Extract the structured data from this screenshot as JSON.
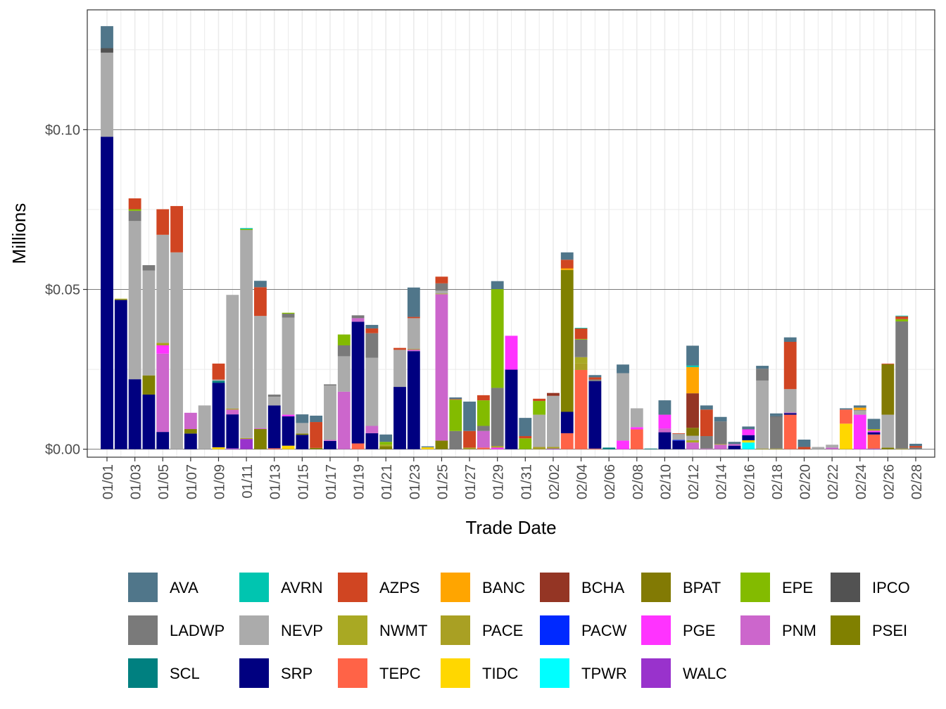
{
  "chart_data": {
    "type": "bar",
    "stacked": true,
    "xlabel": "Trade Date",
    "ylabel": "Millions",
    "ylim": [
      -0.0025,
      0.1375
    ],
    "yticks": [
      {
        "value": 0,
        "label": "$0.00"
      },
      {
        "value": 0.05,
        "label": "$0.05"
      },
      {
        "value": 0.1,
        "label": "$0.10"
      }
    ],
    "grid": true,
    "legend_position": "bottom",
    "series": [
      {
        "name": "AVA",
        "color": "#50768A"
      },
      {
        "name": "AVRN",
        "color": "#00C5B0"
      },
      {
        "name": "AZPS",
        "color": "#D04522"
      },
      {
        "name": "BANC",
        "color": "#FFA500"
      },
      {
        "name": "BCHA",
        "color": "#943524"
      },
      {
        "name": "BPAT",
        "color": "#827A04"
      },
      {
        "name": "EPE",
        "color": "#83BB00"
      },
      {
        "name": "IPCO",
        "color": "#525252"
      },
      {
        "name": "LADWP",
        "color": "#7A7A7A"
      },
      {
        "name": "NEVP",
        "color": "#ABABAB"
      },
      {
        "name": "NWMT",
        "color": "#A9A923"
      },
      {
        "name": "PACE",
        "color": "#A9A023"
      },
      {
        "name": "PACW",
        "color": "#0029FF"
      },
      {
        "name": "PGE",
        "color": "#FF33FF"
      },
      {
        "name": "PNM",
        "color": "#CC66CC"
      },
      {
        "name": "PSEI",
        "color": "#808000"
      },
      {
        "name": "SCL",
        "color": "#008080"
      },
      {
        "name": "SRP",
        "color": "#000080"
      },
      {
        "name": "TEPC",
        "color": "#FF6347"
      },
      {
        "name": "TIDC",
        "color": "#FFD700"
      },
      {
        "name": "TPWR",
        "color": "#00FFFF"
      },
      {
        "name": "WALC",
        "color": "#9932CC"
      }
    ],
    "days": [
      {
        "date": "01/01",
        "label": "01/01",
        "values": {
          "SRP": 0.0978,
          "NEVP": 0.0263,
          "IPCO": 0.0014,
          "AVA": 0.0069
        }
      },
      {
        "date": "01/02",
        "label": "",
        "values": {
          "SRP": 0.0467,
          "NWMT": 0.0004
        }
      },
      {
        "date": "01/03",
        "label": "01/03",
        "values": {
          "SRP": 0.0219,
          "NEVP": 0.0495,
          "LADWP": 0.0032,
          "EPE": 0.0005,
          "AZPS": 0.0034
        }
      },
      {
        "date": "01/04",
        "label": "",
        "values": {
          "SRP": 0.0171,
          "PSEI": 0.006,
          "NEVP": 0.0328,
          "LADWP": 0.0017
        }
      },
      {
        "date": "01/05",
        "label": "01/05",
        "values": {
          "SRP": 0.0054,
          "PNM": 0.0245,
          "PGE": 0.0026,
          "PACE": 0.0008,
          "NEVP": 0.0338,
          "AZPS": 0.008
        }
      },
      {
        "date": "01/06",
        "label": "",
        "values": {
          "NEVP": 0.0616,
          "AZPS": 0.0145
        }
      },
      {
        "date": "01/07",
        "label": "01/07",
        "values": {
          "SRP": 0.0049,
          "PSEI": 0.0014,
          "PNM": 0.0051
        }
      },
      {
        "date": "01/08",
        "label": "",
        "values": {
          "NEVP": 0.0137
        }
      },
      {
        "date": "01/09",
        "label": "01/09",
        "values": {
          "TIDC": 0.0006,
          "SRP": 0.0202,
          "SCL": 0.0006,
          "NEVP": 0.0004,
          "AZPS": 0.005
        }
      },
      {
        "date": "01/10",
        "label": "",
        "values": {
          "WALC": 0.0003,
          "SRP": 0.0106,
          "PNM": 0.0015,
          "PACE": 0.0003,
          "NEVP": 0.0356
        }
      },
      {
        "date": "01/11",
        "label": "01/11",
        "values": {
          "WALC": 0.0032,
          "PACE": 0.0003,
          "NEVP": 0.0651,
          "EPE": 0.0003,
          "AVRN": 0.0003
        }
      },
      {
        "date": "01/12",
        "label": "",
        "values": {
          "PSEI": 0.0063,
          "PNM": 0.0003,
          "NEVP": 0.0351,
          "AZPS": 0.009,
          "AVA": 0.002
        }
      },
      {
        "date": "01/13",
        "label": "01/13",
        "values": {
          "TEPC": 0.0003,
          "SRP": 0.0134,
          "NEVP": 0.0027,
          "LADWP": 0.0007
        }
      },
      {
        "date": "01/14",
        "label": "",
        "values": {
          "TIDC": 0.0011,
          "SRP": 0.0092,
          "PGE": 0.0005,
          "NEVP": 0.0304,
          "LADWP": 0.0012,
          "EPE": 0.0003
        }
      },
      {
        "date": "01/15",
        "label": "01/15",
        "values": {
          "SRP": 0.0045,
          "PSEI": 0.0004,
          "NEVP": 0.0033,
          "AVA": 0.0027
        }
      },
      {
        "date": "01/16",
        "label": "",
        "values": {
          "PSEI": 0.0004,
          "AZPS": 0.0081,
          "AVA": 0.002
        }
      },
      {
        "date": "01/17",
        "label": "01/17",
        "values": {
          "SRP": 0.0026,
          "PNM": 0.0003,
          "NEVP": 0.017,
          "LADWP": 0.0004
        }
      },
      {
        "date": "01/18",
        "label": "",
        "values": {
          "PNM": 0.018,
          "NEVP": 0.0111,
          "LADWP": 0.0034,
          "EPE": 0.0034
        }
      },
      {
        "date": "01/19",
        "label": "01/19",
        "values": {
          "TEPC": 0.0018,
          "SRP": 0.0381,
          "PNM": 0.0011,
          "LADWP": 0.0009
        }
      },
      {
        "date": "01/20",
        "label": "",
        "values": {
          "SRP": 0.005,
          "PNM": 0.0023,
          "NEVP": 0.0213,
          "LADWP": 0.0077,
          "AZPS": 0.0015,
          "AVA": 0.0011
        }
      },
      {
        "date": "01/21",
        "label": "01/21",
        "values": {
          "PSEI": 0.0009,
          "NWMT": 0.0005,
          "EPE": 0.0009,
          "AVA": 0.0023
        }
      },
      {
        "date": "01/22",
        "label": "",
        "values": {
          "SRP": 0.0195,
          "NEVP": 0.0116,
          "AZPS": 0.0006
        }
      },
      {
        "date": "01/23",
        "label": "01/23",
        "values": {
          "SRP": 0.0307,
          "PNM": 0.0005,
          "PACE": 0.0002,
          "NEVP": 0.0096,
          "AZPS": 0.0004,
          "AVA": 0.0092
        }
      },
      {
        "date": "01/24",
        "label": "",
        "values": {
          "TIDC": 0.0006,
          "AVA": 0.0003
        }
      },
      {
        "date": "01/25",
        "label": "01/25",
        "values": {
          "PSEI": 0.0027,
          "PNM": 0.0458,
          "PACE": 0.0002,
          "NEVP": 0.0009,
          "LADWP": 0.0023,
          "AZPS": 0.0021
        }
      },
      {
        "date": "01/26",
        "label": "",
        "values": {
          "LADWP": 0.0057,
          "EPE": 0.0098,
          "AZPS": 0.0002,
          "AVA": 0.0005
        }
      },
      {
        "date": "01/27",
        "label": "01/27",
        "values": {
          "PACE": 0.0005,
          "AZPS": 0.0052,
          "AVA": 0.0092
        }
      },
      {
        "date": "01/28",
        "label": "",
        "values": {
          "TEPC": 0.0005,
          "PNM": 0.0052,
          "LADWP": 0.0016,
          "EPE": 0.008,
          "AZPS": 0.0016
        }
      },
      {
        "date": "01/29",
        "label": "01/29",
        "values": {
          "PGE": 0.0005,
          "PACE": 0.0005,
          "LADWP": 0.0182,
          "EPE": 0.0309,
          "AVA": 0.0025
        }
      },
      {
        "date": "01/30",
        "label": "",
        "values": {
          "SRP": 0.0249,
          "PGE": 0.0106
        }
      },
      {
        "date": "01/31",
        "label": "01/31",
        "values": {
          "EPE": 0.0034,
          "AZPS": 0.0007,
          "AVA": 0.0057
        }
      },
      {
        "date": "02/01",
        "label": "",
        "values": {
          "PACE": 0.0007,
          "NEVP": 0.0101,
          "EPE": 0.0043,
          "AZPS": 0.0007
        }
      },
      {
        "date": "02/02",
        "label": "02/02",
        "values": {
          "WALC": 0.0002,
          "PACE": 0.0005,
          "NEVP": 0.016,
          "BCHA": 0.0009
        }
      },
      {
        "date": "02/03",
        "label": "",
        "values": {
          "TEPC": 0.005,
          "SRP": 0.0067,
          "PSEI": 0.0444,
          "BANC": 0.0005,
          "AZPS": 0.0027,
          "AVA": 0.0023
        }
      },
      {
        "date": "02/04",
        "label": "02/04",
        "values": {
          "TEPC": 0.0248,
          "PACE": 0.002,
          "NWMT": 0.002,
          "LADWP": 0.0055,
          "EPE": 0.0002,
          "AZPS": 0.0033,
          "AVRN": 0.0002
        }
      },
      {
        "date": "02/05",
        "label": "",
        "values": {
          "TEPC": 0.0002,
          "SRP": 0.0211,
          "LADWP": 0.0005,
          "AZPS": 0.0007,
          "AVA": 0.0007
        }
      },
      {
        "date": "02/06",
        "label": "02/06",
        "values": {
          "SCL": 0.0005
        }
      },
      {
        "date": "02/07",
        "label": "",
        "values": {
          "PGE": 0.0027,
          "NEVP": 0.0211,
          "AVA": 0.0027
        }
      },
      {
        "date": "02/08",
        "label": "02/08",
        "values": {
          "TEPC": 0.0062,
          "PGE": 0.0007,
          "NEVP": 0.0059
        }
      },
      {
        "date": "02/09",
        "label": "",
        "values": {
          "SCL": 0.0002
        }
      },
      {
        "date": "02/10",
        "label": "02/10",
        "values": {
          "SRP": 0.0053,
          "PNM": 0.0012,
          "PGE": 0.0043,
          "AVA": 0.0045
        }
      },
      {
        "date": "02/11",
        "label": "",
        "values": {
          "SRP": 0.0027,
          "PACW": 0.0002,
          "NEVP": 0.0019,
          "AZPS": 0.0002
        }
      },
      {
        "date": "02/12",
        "label": "02/12",
        "values": {
          "PNM": 0.0021,
          "NWMT": 0.0007,
          "NEVP": 0.0014,
          "BPAT": 0.0025,
          "BCHA": 0.0108,
          "BANC": 0.0082,
          "AVRN": 0.0005,
          "AVA": 0.0062
        }
      },
      {
        "date": "02/13",
        "label": "",
        "values": {
          "PNM": 0.0002,
          "LADWP": 0.0039,
          "AZPS": 0.0083,
          "AVA": 0.0013
        }
      },
      {
        "date": "02/14",
        "label": "02/14",
        "values": {
          "PNM": 0.0014,
          "PACE": 0.0002,
          "LADWP": 0.0071,
          "AVA": 0.0014
        }
      },
      {
        "date": "02/15",
        "label": "",
        "values": {
          "SRP": 0.0011,
          "PNM": 0.0005,
          "AVA": 0.0007
        }
      },
      {
        "date": "02/16",
        "label": "02/16",
        "values": {
          "TPWR": 0.0021,
          "TIDC": 0.0007,
          "SRP": 0.0016,
          "PGE": 0.0018,
          "AVA": 0.0009
        }
      },
      {
        "date": "02/17",
        "label": "",
        "values": {
          "PACE": 0.0002,
          "NEVP": 0.0213,
          "LADWP": 0.0037,
          "AVA": 0.0009
        }
      },
      {
        "date": "02/18",
        "label": "02/18",
        "values": {
          "PACE": 0.0002,
          "LADWP": 0.0099,
          "IPCO": 0.0002,
          "AVA": 0.0009
        }
      },
      {
        "date": "02/19",
        "label": "",
        "values": {
          "TEPC": 0.0108,
          "SRP": 0.0005,
          "PNM": 0.0002,
          "NEVP": 0.0073,
          "AZPS": 0.0148,
          "AVA": 0.0014
        }
      },
      {
        "date": "02/20",
        "label": "02/20",
        "values": {
          "AZPS": 0.0007,
          "AVA": 0.0023
        }
      },
      {
        "date": "02/21",
        "label": "",
        "values": {
          "NEVP": 0.0007
        }
      },
      {
        "date": "02/22",
        "label": "02/22",
        "values": {
          "PNM": 0.0005,
          "NEVP": 0.0009
        }
      },
      {
        "date": "02/23",
        "label": "",
        "values": {
          "TIDC": 0.008,
          "TEPC": 0.0044,
          "AVA": 0.0004
        }
      },
      {
        "date": "02/24",
        "label": "02/24",
        "values": {
          "PGE": 0.0108,
          "NEVP": 0.0013,
          "LADWP": 0.0002,
          "BANC": 0.0007,
          "AVA": 0.0007
        }
      },
      {
        "date": "02/25",
        "label": "",
        "values": {
          "WALC": 0.0002,
          "TEPC": 0.0044,
          "SRP": 0.0007,
          "PGE": 0.0005,
          "NWMT": 0.0005,
          "AVA": 0.0032
        }
      },
      {
        "date": "02/26",
        "label": "02/26",
        "values": {
          "PSEI": 0.0005,
          "NEVP": 0.0103,
          "BPAT": 0.0158,
          "AZPS": 0.0002
        }
      },
      {
        "date": "02/27",
        "label": "",
        "values": {
          "PACE": 0.0002,
          "LADWP": 0.0398,
          "EPE": 0.0007,
          "AZPS": 0.0009,
          "AVRN": 0.0002
        }
      },
      {
        "date": "02/28",
        "label": "02/28",
        "values": {
          "LADWP": 0.0005,
          "AZPS": 0.0005,
          "AVA": 0.0007
        }
      }
    ]
  }
}
